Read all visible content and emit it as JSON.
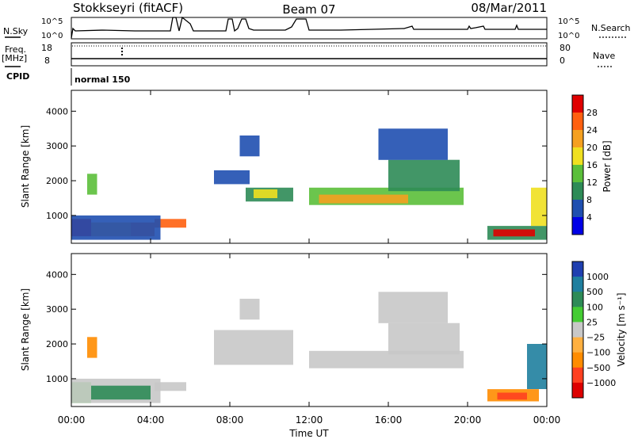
{
  "header": {
    "station": "Stokkseyri (fitACF)",
    "beam": "Beam 07",
    "date": "08/Mar/2011"
  },
  "strip": {
    "nsky_label": "N.Sky",
    "nsearch_label": "N.Search",
    "freq_label_1": "Freq.",
    "freq_label_2": "[MHz]",
    "nave_label": "Nave",
    "cpid_label": "CPID",
    "cpid_value": "normal 150",
    "noise_ticks": [
      "10^5",
      "10^0"
    ],
    "freq_ticks": [
      "18",
      "8"
    ],
    "nave_ticks": [
      "80",
      "0"
    ]
  },
  "chart_data": [
    {
      "type": "heatmap",
      "name": "power-panel",
      "ylabel": "Slant Range [km]",
      "yticks": [
        "1000",
        "2000",
        "3000",
        "4000"
      ],
      "ylim": [
        200,
        4600
      ],
      "colorbar_label": "Power [dB]",
      "colorbar_ticks": [
        "4",
        "8",
        "12",
        "16",
        "20",
        "24",
        "28"
      ],
      "colors": [
        "#0000e6",
        "#1f4fb0",
        "#2e8b57",
        "#5bbf3a",
        "#f0e020",
        "#f5a020",
        "#ff6010",
        "#e00000"
      ],
      "x_unit": "hours UT",
      "regions": [
        {
          "t": [
            0.0,
            1.0
          ],
          "r": [
            400,
            900
          ],
          "level": 7
        },
        {
          "t": [
            1.0,
            3.0
          ],
          "r": [
            400,
            800
          ],
          "level": 5
        },
        {
          "t": [
            3.0,
            4.2
          ],
          "r": [
            400,
            800
          ],
          "level": 6
        },
        {
          "t": [
            4.2,
            5.8
          ],
          "r": [
            650,
            900
          ],
          "level": 6
        },
        {
          "t": [
            0.0,
            4.5
          ],
          "r": [
            300,
            1000
          ],
          "level": 1
        },
        {
          "t": [
            0.8,
            1.3
          ],
          "r": [
            1600,
            2200
          ],
          "level": 3
        },
        {
          "t": [
            7.2,
            9.0
          ],
          "r": [
            1900,
            2300
          ],
          "level": 1
        },
        {
          "t": [
            8.8,
            11.2
          ],
          "r": [
            1400,
            1800
          ],
          "level": 2
        },
        {
          "t": [
            9.2,
            10.4
          ],
          "r": [
            1500,
            1750
          ],
          "level": 4
        },
        {
          "t": [
            8.5,
            9.5
          ],
          "r": [
            2700,
            3300
          ],
          "level": 1
        },
        {
          "t": [
            12.0,
            19.8
          ],
          "r": [
            1300,
            1800
          ],
          "level": 3
        },
        {
          "t": [
            12.5,
            17.0
          ],
          "r": [
            1350,
            1600
          ],
          "level": 5
        },
        {
          "t": [
            16.0,
            19.6
          ],
          "r": [
            1700,
            2600
          ],
          "level": 2
        },
        {
          "t": [
            15.5,
            19.0
          ],
          "r": [
            2600,
            3500
          ],
          "level": 1
        },
        {
          "t": [
            21.0,
            24.0
          ],
          "r": [
            300,
            700
          ],
          "level": 2
        },
        {
          "t": [
            21.3,
            23.4
          ],
          "r": [
            400,
            600
          ],
          "level": 7
        },
        {
          "t": [
            23.2,
            24.0
          ],
          "r": [
            700,
            1800
          ],
          "level": 4
        }
      ]
    },
    {
      "type": "heatmap",
      "name": "velocity-panel",
      "ylabel": "Slant Range [km]",
      "yticks": [
        "1000",
        "2000",
        "3000",
        "4000"
      ],
      "ylim": [
        200,
        4600
      ],
      "colorbar_label": "Velocity [m s⁻¹]",
      "colorbar_ticks": [
        "1000",
        "500",
        "100",
        "25",
        "−25",
        "−100",
        "−500",
        "−1000"
      ],
      "colors": [
        "#1f3fb0",
        "#1f7f9f",
        "#2e8b57",
        "#44cc33",
        "#c8c8c8",
        "#ffb040",
        "#ff8c00",
        "#ff4020",
        "#dd0000"
      ],
      "x_unit": "hours UT",
      "regions": [
        {
          "t": [
            0.0,
            1.0
          ],
          "r": [
            300,
            900
          ],
          "level": 3
        },
        {
          "t": [
            0.0,
            4.5
          ],
          "r": [
            300,
            1000
          ],
          "level": 4
        },
        {
          "t": [
            1.0,
            4.0
          ],
          "r": [
            400,
            800
          ],
          "level": 2
        },
        {
          "t": [
            4.2,
            5.8
          ],
          "r": [
            650,
            900
          ],
          "level": 4
        },
        {
          "t": [
            0.8,
            1.3
          ],
          "r": [
            1600,
            2200
          ],
          "level": 6
        },
        {
          "t": [
            7.2,
            11.2
          ],
          "r": [
            1400,
            2400
          ],
          "level": 4
        },
        {
          "t": [
            8.5,
            9.5
          ],
          "r": [
            2700,
            3300
          ],
          "level": 4
        },
        {
          "t": [
            12.0,
            19.8
          ],
          "r": [
            1300,
            1800
          ],
          "level": 4
        },
        {
          "t": [
            16.0,
            19.6
          ],
          "r": [
            1700,
            2600
          ],
          "level": 4
        },
        {
          "t": [
            15.5,
            19.0
          ],
          "r": [
            2600,
            3500
          ],
          "level": 4
        },
        {
          "t": [
            21.0,
            23.6
          ],
          "r": [
            350,
            700
          ],
          "level": 6
        },
        {
          "t": [
            21.5,
            23.0
          ],
          "r": [
            400,
            600
          ],
          "level": 7
        },
        {
          "t": [
            23.0,
            24.0
          ],
          "r": [
            700,
            2000
          ],
          "level": 1
        }
      ]
    }
  ],
  "axis": {
    "xticks": [
      "00:00",
      "04:00",
      "08:00",
      "12:00",
      "16:00",
      "20:00",
      "00:00"
    ],
    "xlabel": "Time UT"
  }
}
